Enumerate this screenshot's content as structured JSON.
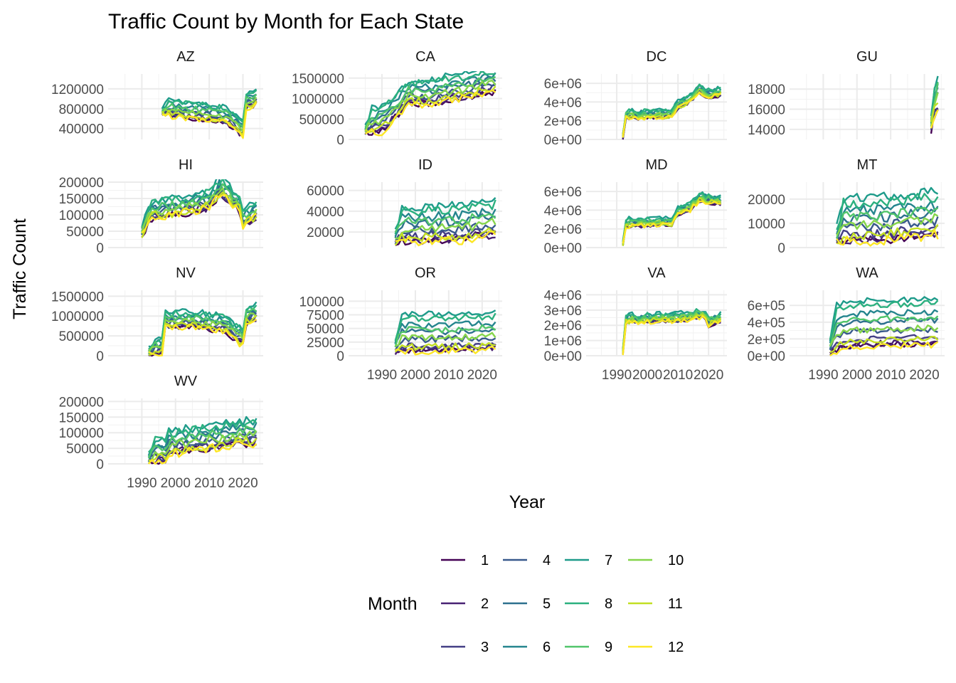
{
  "chart_data": {
    "type": "line",
    "title": "Traffic Count by Month for Each State",
    "xlabel": "Year",
    "ylabel": "Traffic Count",
    "legend": {
      "title": "Month",
      "placement": "bottom",
      "entries": [
        "1",
        "2",
        "3",
        "4",
        "5",
        "6",
        "7",
        "8",
        "9",
        "10",
        "11",
        "12"
      ],
      "colors": [
        "#440154",
        "#482173",
        "#433E85",
        "#38598C",
        "#2D708E",
        "#25858E",
        "#1E9B8A",
        "#2BB07F",
        "#51C56A",
        "#85D54A",
        "#C2DF23",
        "#FDE725"
      ]
    },
    "x_ticks": [
      "1990",
      "2000",
      "2010",
      "2020"
    ],
    "xlim": [
      1980,
      2026
    ],
    "grid": true,
    "panels": [
      {
        "state": "AZ",
        "start": 1996,
        "end": 2024,
        "ylim": [
          180000,
          1500000
        ],
        "yticks": [
          400000,
          800000,
          1200000
        ],
        "ytick_labels": [
          "400000",
          "800000",
          "1200000"
        ],
        "base": [
          [
            1996,
            700000
          ],
          [
            2000,
            620000
          ],
          [
            2005,
            600000
          ],
          [
            2010,
            560000
          ],
          [
            2015,
            500000
          ],
          [
            2017,
            420000
          ],
          [
            2019,
            280000
          ],
          [
            2020,
            260000
          ],
          [
            2021,
            800000
          ],
          [
            2024,
            880000
          ]
        ],
        "spread": 330000,
        "noise": 60000
      },
      {
        "state": "CA",
        "start": 1985,
        "end": 2024,
        "ylim": [
          0,
          1600000
        ],
        "yticks": [
          0,
          500000,
          1000000,
          1500000
        ],
        "ytick_labels": [
          "0",
          "500000",
          "1000000",
          "1500000"
        ],
        "base": [
          [
            1985,
            150000
          ],
          [
            1990,
            180000
          ],
          [
            1994,
            500000
          ],
          [
            1998,
            850000
          ],
          [
            2005,
            850000
          ],
          [
            2010,
            950000
          ],
          [
            2015,
            1000000
          ],
          [
            2020,
            1100000
          ],
          [
            2024,
            1150000
          ]
        ],
        "spread": 600000,
        "noise": 90000
      },
      {
        "state": "DC",
        "start": 1992,
        "end": 2024,
        "ylim": [
          0,
          7000000
        ],
        "yticks": [
          0,
          2000000,
          4000000,
          6000000
        ],
        "ytick_labels": [
          "0e+00",
          "2e+06",
          "4e+06",
          "6e+06"
        ],
        "base": [
          [
            1992,
            200000
          ],
          [
            1993,
            2300000
          ],
          [
            2000,
            2300000
          ],
          [
            2008,
            2400000
          ],
          [
            2010,
            3300000
          ],
          [
            2014,
            4000000
          ],
          [
            2017,
            5000000
          ],
          [
            2020,
            4500000
          ],
          [
            2024,
            4700000
          ]
        ],
        "spread": 800000,
        "noise": 250000
      },
      {
        "state": "GU",
        "start": 2022,
        "end": 2024,
        "ylim": [
          13000,
          19500
        ],
        "yticks": [
          14000,
          16000,
          18000
        ],
        "ytick_labels": [
          "14000",
          "16000",
          "18000"
        ],
        "base": [
          [
            2022,
            14000
          ],
          [
            2023,
            15500
          ],
          [
            2024,
            16000
          ]
        ],
        "spread": 3500,
        "noise": 600
      },
      {
        "state": "HI",
        "start": 1990,
        "end": 2024,
        "ylim": [
          0,
          200000
        ],
        "yticks": [
          0,
          50000,
          100000,
          150000,
          200000
        ],
        "ytick_labels": [
          "0",
          "50000",
          "100000",
          "150000",
          "200000"
        ],
        "base": [
          [
            1990,
            40000
          ],
          [
            1993,
            90000
          ],
          [
            2000,
            100000
          ],
          [
            2005,
            110000
          ],
          [
            2010,
            120000
          ],
          [
            2013,
            160000
          ],
          [
            2016,
            140000
          ],
          [
            2019,
            110000
          ],
          [
            2020,
            60000
          ],
          [
            2024,
            90000
          ]
        ],
        "spread": 50000,
        "noise": 14000
      },
      {
        "state": "ID",
        "start": 1994,
        "end": 2024,
        "ylim": [
          5000,
          68000
        ],
        "yticks": [
          20000,
          40000,
          60000
        ],
        "ytick_labels": [
          "20000",
          "40000",
          "60000"
        ],
        "base": [
          [
            1994,
            9000
          ],
          [
            2005,
            10000
          ],
          [
            2015,
            12000
          ],
          [
            2024,
            16000
          ]
        ],
        "spread": 34000,
        "noise": 4500
      },
      {
        "state": "MD",
        "start": 1992,
        "end": 2024,
        "ylim": [
          0,
          7000000
        ],
        "yticks": [
          0,
          2000000,
          4000000,
          6000000
        ],
        "ytick_labels": [
          "0e+00",
          "2e+06",
          "4e+06",
          "6e+06"
        ],
        "base": [
          [
            1992,
            300000
          ],
          [
            1993,
            2300000
          ],
          [
            2000,
            2300000
          ],
          [
            2008,
            2400000
          ],
          [
            2010,
            3500000
          ],
          [
            2014,
            4000000
          ],
          [
            2017,
            5000000
          ],
          [
            2020,
            4800000
          ],
          [
            2024,
            4600000
          ]
        ],
        "spread": 800000,
        "noise": 250000
      },
      {
        "state": "MT",
        "start": 1994,
        "end": 2024,
        "ylim": [
          0,
          27000
        ],
        "yticks": [
          0,
          10000,
          20000
        ],
        "ytick_labels": [
          "0",
          "10000",
          "20000"
        ],
        "base": [
          [
            1994,
            2000
          ],
          [
            2005,
            2500
          ],
          [
            2015,
            3500
          ],
          [
            2024,
            5000
          ]
        ],
        "spread": 18000,
        "noise": 2200
      },
      {
        "state": "NV",
        "start": 1992,
        "end": 2024,
        "ylim": [
          0,
          1650000
        ],
        "yticks": [
          0,
          500000,
          1000000,
          1500000
        ],
        "ytick_labels": [
          "0",
          "500000",
          "1000000",
          "1500000"
        ],
        "base": [
          [
            1992,
            30000
          ],
          [
            1996,
            40000
          ],
          [
            1997,
            700000
          ],
          [
            2005,
            720000
          ],
          [
            2010,
            650000
          ],
          [
            2015,
            600000
          ],
          [
            2017,
            450000
          ],
          [
            2019,
            300000
          ],
          [
            2020,
            280000
          ],
          [
            2021,
            800000
          ],
          [
            2024,
            900000
          ]
        ],
        "spread": 400000,
        "noise": 80000
      },
      {
        "state": "OR",
        "start": 1994,
        "end": 2024,
        "ylim": [
          0,
          120000
        ],
        "yticks": [
          0,
          25000,
          50000,
          75000,
          100000
        ],
        "ytick_labels": [
          "0",
          "25000",
          "50000",
          "75000",
          "100000"
        ],
        "base": [
          [
            1994,
            5000
          ],
          [
            2005,
            6000
          ],
          [
            2015,
            7000
          ],
          [
            2024,
            10000
          ]
        ],
        "spread": 70000,
        "noise": 6000
      },
      {
        "state": "VA",
        "start": 1992,
        "end": 2024,
        "ylim": [
          0,
          4300000
        ],
        "yticks": [
          0,
          1000000,
          2000000,
          3000000,
          4000000
        ],
        "ytick_labels": [
          "0e+00",
          "1e+06",
          "2e+06",
          "3e+06",
          "4e+06"
        ],
        "base": [
          [
            1992,
            200000
          ],
          [
            1993,
            2200000
          ],
          [
            2000,
            2200000
          ],
          [
            2010,
            2300000
          ],
          [
            2018,
            2500000
          ],
          [
            2020,
            2000000
          ],
          [
            2024,
            2300000
          ]
        ],
        "spread": 500000,
        "noise": 180000
      },
      {
        "state": "WA",
        "start": 1992,
        "end": 2024,
        "ylim": [
          0,
          780000
        ],
        "yticks": [
          0,
          200000,
          400000,
          600000
        ],
        "ytick_labels": [
          "0e+00",
          "2e+05",
          "4e+05",
          "6e+05"
        ],
        "base": [
          [
            1992,
            10000
          ],
          [
            1997,
            90000
          ],
          [
            2005,
            100000
          ],
          [
            2015,
            110000
          ],
          [
            2024,
            120000
          ]
        ],
        "spread": 560000,
        "noise": 35000
      },
      {
        "state": "WV",
        "start": 1992,
        "end": 2024,
        "ylim": [
          0,
          210000
        ],
        "yticks": [
          0,
          50000,
          100000,
          150000,
          200000
        ],
        "ytick_labels": [
          "0",
          "50000",
          "100000",
          "150000",
          "200000"
        ],
        "base": [
          [
            1992,
            5000
          ],
          [
            1997,
            8000
          ],
          [
            1998,
            30000
          ],
          [
            2005,
            40000
          ],
          [
            2015,
            55000
          ],
          [
            2024,
            65000
          ]
        ],
        "spread": 75000,
        "noise": 14000
      }
    ]
  }
}
